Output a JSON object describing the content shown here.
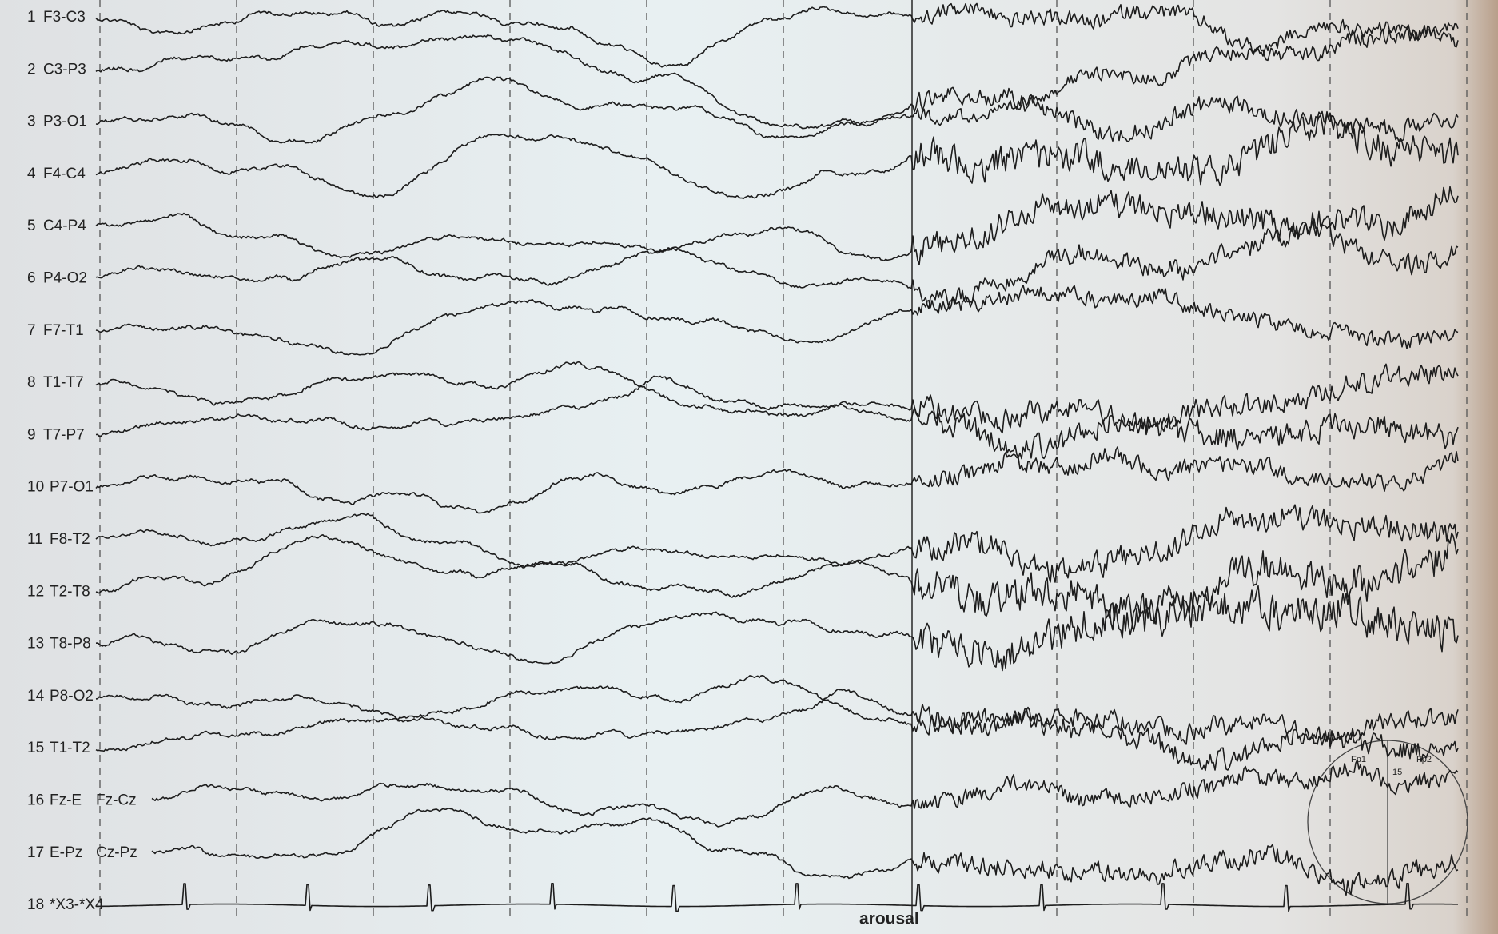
{
  "channels": [
    {
      "number": "1",
      "label": "F3-C3"
    },
    {
      "number": "2",
      "label": "C3-P3"
    },
    {
      "number": "3",
      "label": "P3-O1"
    },
    {
      "number": "4",
      "label": "F4-C4"
    },
    {
      "number": "5",
      "label": "C4-P4"
    },
    {
      "number": "6",
      "label": "P4-O2"
    },
    {
      "number": "7",
      "label": "F7-T1"
    },
    {
      "number": "8",
      "label": "T1-T7"
    },
    {
      "number": "9",
      "label": "T7-P7"
    },
    {
      "number": "10",
      "label": "P7-O1"
    },
    {
      "number": "11",
      "label": "F8-T2"
    },
    {
      "number": "12",
      "label": "T2-T8"
    },
    {
      "number": "13",
      "label": "T8-P8"
    },
    {
      "number": "14",
      "label": "P8-O2"
    },
    {
      "number": "15",
      "label": "T1-T2"
    },
    {
      "number": "16",
      "label": "Fz-E",
      "sublabel": "Fz-Cz"
    },
    {
      "number": "17",
      "label": "E-Pz",
      "sublabel": "Cz-Pz"
    },
    {
      "number": "18",
      "label": "*X3-*X4"
    }
  ],
  "annotation": "arousal",
  "head_diagram": {
    "labels": [
      "Fp1",
      "Fp2",
      "15"
    ]
  }
}
